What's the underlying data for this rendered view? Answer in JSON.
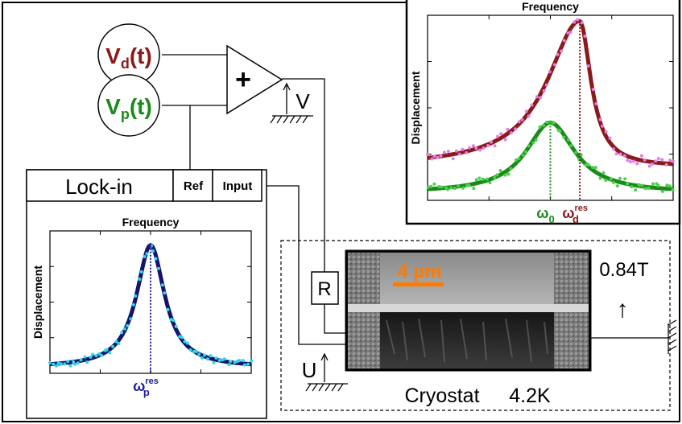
{
  "sources": {
    "drive": {
      "label_main": "V",
      "label_sub": "d",
      "label_rest": "(t)",
      "color": "#8b1a1a"
    },
    "probe": {
      "label_main": "V",
      "label_sub": "p",
      "label_rest": "(t)",
      "color": "#1a8a1a"
    }
  },
  "amplifier": {
    "symbol": "+",
    "output_label": "V"
  },
  "lockin": {
    "title": "Lock-in",
    "ref_label": "Ref",
    "input_label": "Input"
  },
  "resistor": {
    "label": "R"
  },
  "bias": {
    "label": "U"
  },
  "cryostat": {
    "label": "Cryostat",
    "temperature": "4.2K",
    "field": "0.84T",
    "field_arrow": "↑"
  },
  "micrograph": {
    "scalebar_label": "4 µm",
    "scalebar_color": "#ff7a00"
  },
  "chart_data": [
    {
      "type": "line",
      "title": "Frequency",
      "ylabel": "Displacement",
      "series": [
        {
          "role": "fit",
          "color": "#14146e",
          "center": 0.5,
          "width": 0.085,
          "baseline": 0.04,
          "peak": 0.9
        },
        {
          "role": "data",
          "color": "#2fd7e8"
        }
      ],
      "markers": [
        {
          "main": "ω",
          "sub": "p",
          "sup": "res",
          "color": "#1c1c9c"
        }
      ]
    },
    {
      "type": "line",
      "title": "Frequency",
      "ylabel": "Displacement",
      "series": [
        {
          "role": "fit",
          "color": "#8b1a1a",
          "center": 0.62,
          "width_left": 0.16,
          "width_right": 0.055,
          "baseline": 0.18,
          "peak": 0.97
        },
        {
          "role": "data",
          "color": "#e27de6"
        },
        {
          "role": "fit",
          "color": "#1a8a1a",
          "center": 0.5,
          "width": 0.12,
          "baseline": 0.04,
          "peak": 0.42
        },
        {
          "role": "data",
          "color": "#4cd04c"
        }
      ],
      "markers": [
        {
          "main": "ω",
          "sub": "0",
          "sup": "",
          "color": "#1a8a1a"
        },
        {
          "main": "ω",
          "sub": "d",
          "sup": "res",
          "color": "#8b1a1a"
        }
      ]
    }
  ]
}
